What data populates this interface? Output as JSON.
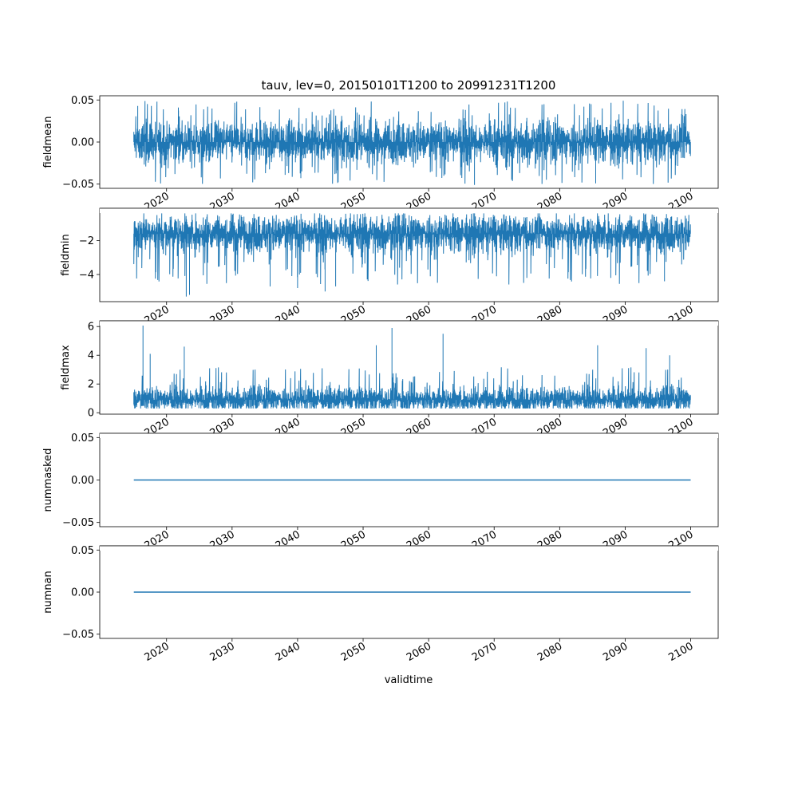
{
  "figure": {
    "title": "tauv, lev=0, 20150101T1200 to 20991231T1200",
    "xlabel": "validtime",
    "line_color": "#1f77b4"
  },
  "chart_data": [
    {
      "type": "line",
      "ylabel": "fieldmean",
      "x_range": [
        "2015-01-01",
        "2099-12-31"
      ],
      "xlim": [
        2009.8,
        2104.2
      ],
      "ylim": [
        -0.055,
        0.055
      ],
      "yticks": [
        -0.05,
        0.0,
        0.05
      ],
      "ytick_labels": [
        "−0.05",
        "0.00",
        "0.05"
      ],
      "signal": {
        "base": 0.0,
        "noise": 0.012,
        "spike_low": -0.05,
        "spike_high": 0.049,
        "lower": -0.051,
        "upper": 0.049
      },
      "peaks": [
        [
          2015.6,
          0.043
        ],
        [
          2084.8,
          0.045
        ],
        [
          2089.7,
          0.049
        ],
        [
          2021.8,
          0.041
        ],
        [
          2067.0,
          -0.051
        ],
        [
          2085.5,
          -0.049
        ],
        [
          2040.5,
          -0.043
        ],
        [
          2038.1,
          -0.039
        ]
      ]
    },
    {
      "type": "line",
      "ylabel": "fieldmin",
      "x_range": [
        "2015-01-01",
        "2099-12-31"
      ],
      "xlim": [
        2009.8,
        2104.2
      ],
      "ylim": [
        -5.6,
        -0.1
      ],
      "yticks": [
        -4,
        -2
      ],
      "ytick_labels": [
        "−4",
        "−2"
      ],
      "signal": {
        "base": -1.6,
        "noise": 0.55,
        "spike_low": -4.6,
        "spike_high": -0.4,
        "lower": -5.4,
        "upper": -0.4
      },
      "peaks": [
        [
          2023.0,
          -5.3
        ],
        [
          2023.5,
          -5.2
        ],
        [
          2044.2,
          -5.0
        ],
        [
          2035.8,
          -4.7
        ],
        [
          2040.0,
          -4.8
        ],
        [
          2045.8,
          -4.7
        ],
        [
          2087.8,
          -4.2
        ],
        [
          2096.0,
          -4.4
        ]
      ]
    },
    {
      "type": "line",
      "ylabel": "fieldmax",
      "x_range": [
        "2015-01-01",
        "2099-12-31"
      ],
      "xlim": [
        2009.8,
        2104.2
      ],
      "ylim": [
        -0.1,
        6.4
      ],
      "yticks": [
        0,
        2,
        4,
        6
      ],
      "ytick_labels": [
        "0",
        "2",
        "4",
        "6"
      ],
      "signal": {
        "base": 0.9,
        "noise": 0.45,
        "spike_low": 0.3,
        "spike_high": 3.2,
        "lower": 0.3,
        "upper": 6.2
      },
      "peaks": [
        [
          2016.4,
          6.1
        ],
        [
          2054.4,
          5.9
        ],
        [
          2017.5,
          4.1
        ],
        [
          2022.7,
          4.6
        ],
        [
          2052.0,
          4.7
        ],
        [
          2062.2,
          5.5
        ],
        [
          2085.8,
          4.7
        ],
        [
          2093.2,
          4.5
        ],
        [
          2096.8,
          4.0
        ]
      ]
    },
    {
      "type": "line",
      "ylabel": "nummasked",
      "x_range": [
        "2015-01-01",
        "2099-12-31"
      ],
      "xlim": [
        2009.8,
        2104.2
      ],
      "ylim": [
        -0.055,
        0.055
      ],
      "yticks": [
        -0.05,
        0.0,
        0.05
      ],
      "ytick_labels": [
        "−0.05",
        "0.00",
        "0.05"
      ],
      "constant": 0.0
    },
    {
      "type": "line",
      "ylabel": "numnan",
      "x_range": [
        "2015-01-01",
        "2099-12-31"
      ],
      "xlim": [
        2009.8,
        2104.2
      ],
      "ylim": [
        -0.055,
        0.055
      ],
      "yticks": [
        -0.05,
        0.0,
        0.05
      ],
      "ytick_labels": [
        "−0.05",
        "0.00",
        "0.05"
      ],
      "constant": 0.0
    }
  ],
  "xticks": [
    2020,
    2030,
    2040,
    2050,
    2060,
    2070,
    2080,
    2090,
    2100
  ],
  "xtick_labels": [
    "2020",
    "2030",
    "2040",
    "2050",
    "2060",
    "2070",
    "2080",
    "2090",
    "2100"
  ]
}
